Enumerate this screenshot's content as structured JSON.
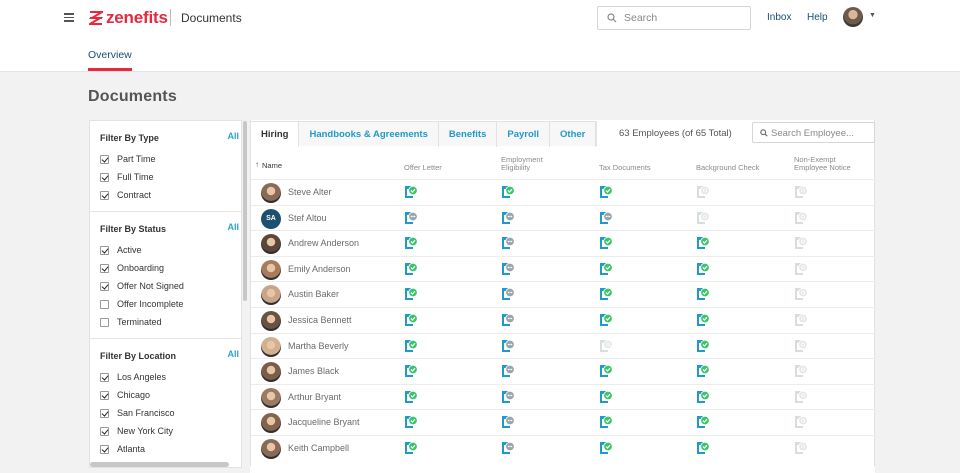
{
  "header": {
    "logo_text": "zenefits",
    "app_name": "Documents",
    "search_placeholder": "Search",
    "inbox_label": "Inbox",
    "help_label": "Help",
    "overview_tab": "Overview",
    "brand_color": "#e8293d"
  },
  "page_title": "Documents",
  "filters": {
    "all_label": "All",
    "type": {
      "title": "Filter By Type",
      "items": [
        {
          "label": "Part Time",
          "checked": true
        },
        {
          "label": "Full Time",
          "checked": true
        },
        {
          "label": "Contract",
          "checked": true
        }
      ]
    },
    "status": {
      "title": "Filter By Status",
      "items": [
        {
          "label": "Active",
          "checked": true
        },
        {
          "label": "Onboarding",
          "checked": true
        },
        {
          "label": "Offer Not Signed",
          "checked": true
        },
        {
          "label": "Offer Incomplete",
          "checked": false
        },
        {
          "label": "Terminated",
          "checked": false
        }
      ]
    },
    "location": {
      "title": "Filter By Location",
      "items": [
        {
          "label": "Los Angeles",
          "checked": true
        },
        {
          "label": "Chicago",
          "checked": true
        },
        {
          "label": "San Francisco",
          "checked": true
        },
        {
          "label": "New York City",
          "checked": true
        },
        {
          "label": "Atlanta",
          "checked": true
        }
      ]
    }
  },
  "tabs": [
    "Hiring",
    "Handbooks & Agreements",
    "Benefits",
    "Payroll",
    "Other"
  ],
  "active_tab": "Hiring",
  "employee_count": "63 Employees (of 65 Total)",
  "employee_search_placeholder": "Search Employee...",
  "columns": {
    "name": "Name",
    "offer_letter": "Offer Letter",
    "employment_eligibility": [
      "Employment",
      "Eligibility"
    ],
    "tax_documents": "Tax Documents",
    "background_check": "Background Check",
    "non_exempt": [
      "Non-Exempt",
      "Employee Notice"
    ]
  },
  "status_legend": {
    "done": "green check",
    "pending": "gray dots",
    "na": "disabled"
  },
  "employees": [
    {
      "name": "Steve Alter",
      "avatar": "photo",
      "docs": [
        "done",
        "done",
        "done",
        "na",
        "na"
      ]
    },
    {
      "name": "Stef Altou",
      "avatar": "SA",
      "docs": [
        "pending",
        "pending",
        "pending",
        "na",
        "na"
      ]
    },
    {
      "name": "Andrew Anderson",
      "avatar": "photo",
      "docs": [
        "done",
        "pending",
        "done",
        "done",
        "na"
      ]
    },
    {
      "name": "Emily Anderson",
      "avatar": "photo",
      "docs": [
        "done",
        "pending",
        "done",
        "done",
        "na"
      ]
    },
    {
      "name": "Austin Baker",
      "avatar": "photo",
      "docs": [
        "done",
        "pending",
        "done",
        "done",
        "na"
      ]
    },
    {
      "name": "Jessica Bennett",
      "avatar": "photo",
      "docs": [
        "done",
        "pending",
        "done",
        "done",
        "na"
      ]
    },
    {
      "name": "Martha Beverly",
      "avatar": "photo",
      "docs": [
        "done",
        "pending",
        "na",
        "done",
        "na"
      ]
    },
    {
      "name": "James Black",
      "avatar": "photo",
      "docs": [
        "done",
        "pending",
        "done",
        "done",
        "na"
      ]
    },
    {
      "name": "Arthur Bryant",
      "avatar": "photo",
      "docs": [
        "done",
        "pending",
        "done",
        "done",
        "na"
      ]
    },
    {
      "name": "Jacqueline Bryant",
      "avatar": "photo",
      "docs": [
        "done",
        "pending",
        "done",
        "done",
        "na"
      ]
    },
    {
      "name": "Keith Campbell",
      "avatar": "photo",
      "docs": [
        "done",
        "pending",
        "done",
        "done",
        "na"
      ]
    }
  ]
}
